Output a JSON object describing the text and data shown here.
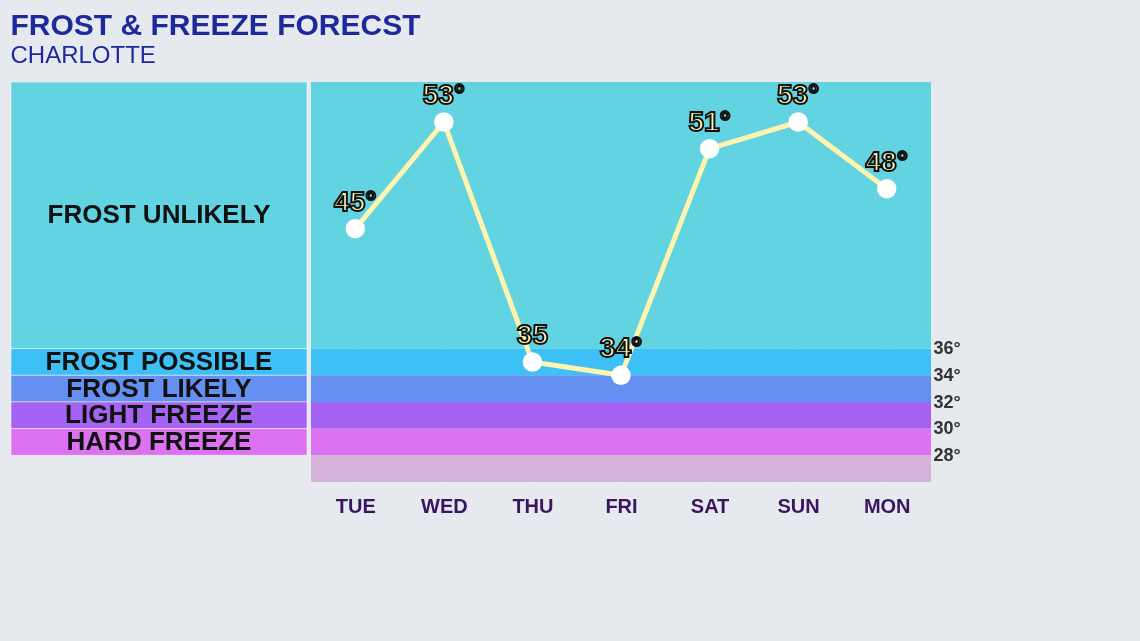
{
  "chart_data": {
    "type": "line",
    "title": "FROST & FREEZE FORECST",
    "subtitle": "CHARLOTTE",
    "categories": [
      "TUE",
      "WED",
      "THU",
      "FRI",
      "SAT",
      "SUN",
      "MON"
    ],
    "series": [
      {
        "color": "#fff3b0",
        "values": [
          45,
          53,
          35,
          34,
          51,
          53,
          48
        ]
      }
    ],
    "value_labels": [
      "45°",
      "53°",
      "35",
      "34°",
      "51°",
      "53°",
      "48°"
    ],
    "marker": "circle",
    "ylim": [
      26,
      56
    ],
    "yticks": [
      {
        "value": 28,
        "label": "28°"
      },
      {
        "value": 30,
        "label": "30°"
      },
      {
        "value": 32,
        "label": "32°"
      },
      {
        "value": 34,
        "label": "34°"
      },
      {
        "value": 36,
        "label": "36°"
      }
    ],
    "bands": [
      {
        "axis": "y",
        "from": 36,
        "to": 56,
        "label": "FROST UNLIKELY",
        "color": "#62d3e0"
      },
      {
        "axis": "y",
        "from": 34,
        "to": 36,
        "label": "FROST POSSIBLE",
        "color": "#3cc0f6"
      },
      {
        "axis": "y",
        "from": 32,
        "to": 34,
        "label": "FROST LIKELY",
        "color": "#6590f2"
      },
      {
        "axis": "y",
        "from": 30,
        "to": 32,
        "label": "LIGHT FREEZE",
        "color": "#a463f2"
      },
      {
        "axis": "y",
        "from": 28,
        "to": 30,
        "label": "HARD FREEZE",
        "color": "#dc72f2"
      },
      {
        "axis": "y",
        "from": 26,
        "to": 28,
        "color": "#d4b2da"
      }
    ],
    "grid": "x"
  }
}
